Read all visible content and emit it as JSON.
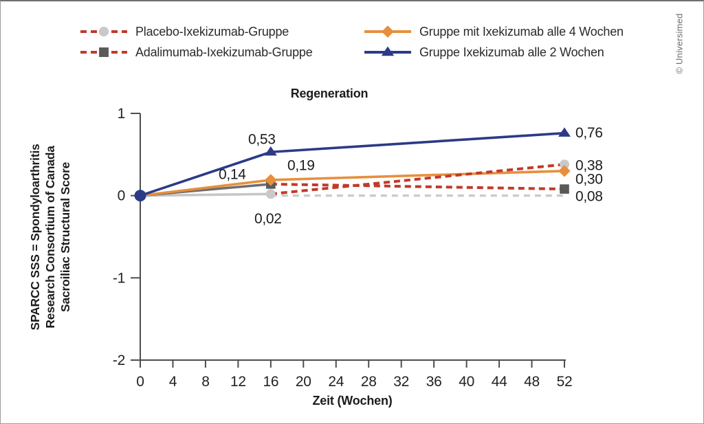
{
  "figure": {
    "title": "Regeneration",
    "copyright": "© Universimed",
    "colors": {
      "axis": "#4d4d4d",
      "text": "#1c1c1c",
      "red_dashed": "#c03a2a",
      "orange": "#e78f3c",
      "blue": "#2c3a87",
      "light_gray": "#c6c6c6",
      "dark_gray": "#6e6e6e"
    }
  },
  "chart_data": {
    "type": "line",
    "title": "Regeneration",
    "xlabel": "Zeit (Wochen)",
    "ylabel": "SPARCC SSS = Spondyloarthritis Research Consortium of Canada Sacroiliac Structural Score",
    "ylabel_lines": [
      "SPARCC SSS = Spondyloarthritis",
      "Research Consortium of Canada",
      "Sacroiliac Structural Score"
    ],
    "xlim": [
      0,
      52
    ],
    "ylim": [
      -2,
      1
    ],
    "x_ticks": [
      0,
      4,
      8,
      12,
      16,
      20,
      24,
      28,
      32,
      36,
      40,
      44,
      48,
      52
    ],
    "y_ticks": [
      1,
      0,
      -1,
      -2
    ],
    "grid": false,
    "legend_position": "top",
    "origin_point": {
      "x": 0,
      "y": 0,
      "color": "#2c3a87"
    },
    "reference_line": {
      "y": 0,
      "x_start": 16,
      "x_end": 52,
      "style": "dashed",
      "color": "#c9cec9"
    },
    "series": [
      {
        "name": "Placebo-Ixekizumab-Gruppe",
        "x": [
          0,
          16,
          52
        ],
        "y": [
          0,
          0.02,
          0.38
        ],
        "marker": "circle",
        "marker_color": "#c9c9c9",
        "segments": [
          {
            "style": "solid",
            "color": "#c6c6c6"
          },
          {
            "style": "dashed",
            "color": "#c03a2a"
          }
        ],
        "legend": {
          "line_style": "dashed",
          "line_color": "#c03a2a"
        },
        "point_labels": [
          null,
          {
            "text": "0,02",
            "dx": -4,
            "dy": 36,
            "anchor": "middle"
          },
          {
            "text": "0,38",
            "dx": 16,
            "dy": 2,
            "anchor": "start"
          }
        ]
      },
      {
        "name": "Adalimumab-Ixekizumab-Gruppe",
        "x": [
          0,
          16,
          52
        ],
        "y": [
          0,
          0.14,
          0.08
        ],
        "marker": "square",
        "marker_color": "#5a5a5a",
        "segments": [
          {
            "style": "solid",
            "color": "#6e6e6e"
          },
          {
            "style": "dashed",
            "color": "#c03a2a"
          }
        ],
        "legend": {
          "line_style": "dashed",
          "line_color": "#c03a2a"
        },
        "point_labels": [
          null,
          {
            "text": "0,14",
            "dx": -56,
            "dy": -14,
            "anchor": "middle"
          },
          {
            "text": "0,08",
            "dx": 16,
            "dy": 11,
            "anchor": "start"
          }
        ]
      },
      {
        "name": "Gruppe mit Ixekizumab alle 4 Wochen",
        "x": [
          0,
          16,
          52
        ],
        "y": [
          0,
          0.19,
          0.3
        ],
        "marker": "diamond",
        "marker_color": "#e78f3c",
        "segments": [
          {
            "style": "solid",
            "color": "#e78f3c"
          },
          {
            "style": "solid",
            "color": "#e78f3c"
          }
        ],
        "legend": {
          "line_style": "solid",
          "line_color": "#e78f3c"
        },
        "point_labels": [
          null,
          {
            "text": "0,19",
            "dx": 44,
            "dy": -21,
            "anchor": "middle"
          },
          {
            "text": "0,30",
            "dx": 16,
            "dy": 12,
            "anchor": "start"
          }
        ]
      },
      {
        "name": "Gruppe Ixekizumab alle 2 Wochen",
        "x": [
          0,
          16,
          52
        ],
        "y": [
          0,
          0.53,
          0.76
        ],
        "marker": "triangle",
        "marker_color": "#2c3a87",
        "segments": [
          {
            "style": "solid",
            "color": "#2c3a87"
          },
          {
            "style": "solid",
            "color": "#2c3a87"
          }
        ],
        "legend": {
          "line_style": "solid",
          "line_color": "#2c3a87"
        },
        "point_labels": [
          null,
          {
            "text": "0,53",
            "dx": -13,
            "dy": -18,
            "anchor": "middle"
          },
          {
            "text": "0,76",
            "dx": 16,
            "dy": 0,
            "anchor": "start"
          }
        ]
      }
    ]
  }
}
